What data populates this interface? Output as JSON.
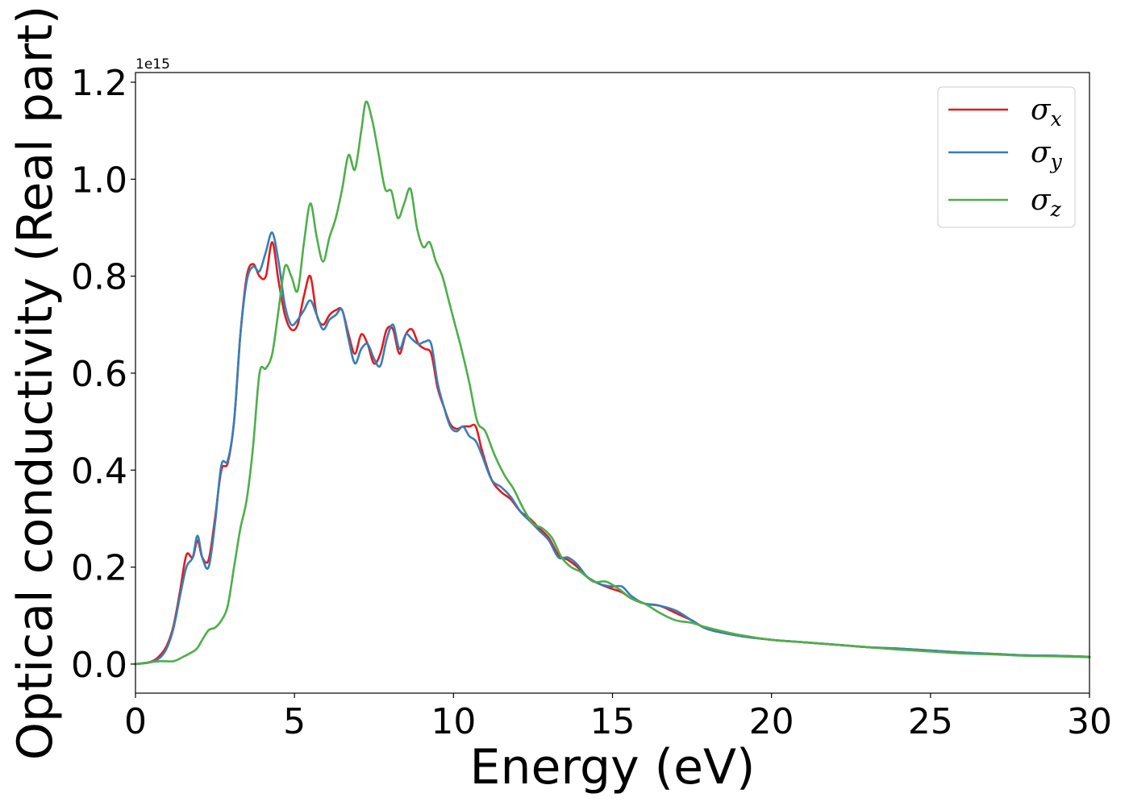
{
  "chart_data": {
    "type": "line",
    "xlabel": "Energy (eV)",
    "ylabel": "Optical conductivity (Real part)",
    "y_offset_label": "1e15",
    "xlim": [
      0,
      30
    ],
    "ylim": [
      -0.06,
      1.22
    ],
    "x_ticks": [
      0,
      5,
      10,
      15,
      20,
      25,
      30
    ],
    "x_tick_labels": [
      "0",
      "5",
      "10",
      "15",
      "20",
      "25",
      "30"
    ],
    "y_ticks": [
      0.0,
      0.2,
      0.4,
      0.6,
      0.8,
      1.0,
      1.2
    ],
    "y_tick_labels": [
      "0.0",
      "0.2",
      "0.4",
      "0.6",
      "0.8",
      "1.0",
      "1.2"
    ],
    "grid": false,
    "legend_position": "top-right",
    "series": [
      {
        "name": "σ_x",
        "legend_base": "σ",
        "legend_sub": "x",
        "color": "#e41a1c",
        "x": [
          0,
          0.5,
          0.8,
          1.0,
          1.2,
          1.4,
          1.6,
          1.8,
          1.95,
          2.1,
          2.3,
          2.5,
          2.7,
          2.9,
          3.1,
          3.3,
          3.5,
          3.7,
          3.9,
          4.1,
          4.3,
          4.5,
          4.7,
          4.9,
          5.1,
          5.3,
          5.5,
          5.7,
          5.9,
          6.1,
          6.3,
          6.5,
          6.7,
          6.9,
          7.1,
          7.3,
          7.5,
          7.7,
          7.9,
          8.1,
          8.3,
          8.5,
          8.7,
          8.9,
          9.1,
          9.3,
          9.5,
          9.7,
          9.9,
          10.1,
          10.3,
          10.5,
          10.7,
          10.9,
          11.2,
          11.5,
          11.8,
          12.1,
          12.4,
          12.7,
          13.0,
          13.3,
          13.6,
          13.9,
          14.2,
          14.6,
          15.0,
          15.3,
          15.6,
          16.0,
          16.5,
          17.0,
          17.5,
          18.0,
          19.0,
          20.0,
          21.0,
          22.0,
          23.0,
          24.0,
          25.0,
          26.0,
          27.0,
          28.0,
          29.0,
          30.0
        ],
        "y": [
          0,
          0.005,
          0.02,
          0.04,
          0.08,
          0.15,
          0.225,
          0.22,
          0.255,
          0.22,
          0.215,
          0.3,
          0.4,
          0.415,
          0.5,
          0.68,
          0.8,
          0.825,
          0.8,
          0.8,
          0.87,
          0.79,
          0.72,
          0.69,
          0.7,
          0.76,
          0.8,
          0.72,
          0.7,
          0.72,
          0.73,
          0.73,
          0.68,
          0.64,
          0.68,
          0.66,
          0.62,
          0.64,
          0.69,
          0.69,
          0.64,
          0.68,
          0.69,
          0.66,
          0.65,
          0.64,
          0.57,
          0.53,
          0.495,
          0.485,
          0.49,
          0.49,
          0.49,
          0.44,
          0.38,
          0.355,
          0.34,
          0.315,
          0.3,
          0.28,
          0.26,
          0.225,
          0.215,
          0.2,
          0.18,
          0.165,
          0.155,
          0.148,
          0.135,
          0.125,
          0.12,
          0.105,
          0.09,
          0.072,
          0.058,
          0.05,
          0.045,
          0.04,
          0.035,
          0.032,
          0.028,
          0.024,
          0.021,
          0.018,
          0.017,
          0.015
        ]
      },
      {
        "name": "σ_y",
        "legend_base": "σ",
        "legend_sub": "y",
        "color": "#377eb8",
        "x": [
          0,
          0.5,
          0.8,
          1.0,
          1.2,
          1.4,
          1.6,
          1.8,
          1.95,
          2.1,
          2.3,
          2.5,
          2.7,
          2.9,
          3.1,
          3.3,
          3.5,
          3.7,
          3.9,
          4.1,
          4.3,
          4.5,
          4.7,
          4.9,
          5.1,
          5.3,
          5.5,
          5.7,
          5.9,
          6.1,
          6.3,
          6.5,
          6.7,
          6.9,
          7.1,
          7.3,
          7.5,
          7.7,
          7.9,
          8.1,
          8.3,
          8.5,
          8.7,
          8.9,
          9.1,
          9.3,
          9.5,
          9.7,
          9.9,
          10.1,
          10.3,
          10.5,
          10.7,
          10.9,
          11.2,
          11.5,
          11.8,
          12.1,
          12.4,
          12.7,
          13.0,
          13.3,
          13.6,
          13.9,
          14.2,
          14.6,
          15.0,
          15.3,
          15.6,
          16.0,
          16.5,
          17.0,
          17.5,
          18.0,
          19.0,
          20.0,
          21.0,
          22.0,
          23.0,
          24.0,
          25.0,
          26.0,
          27.0,
          28.0,
          29.0,
          30.0
        ],
        "y": [
          0,
          0.004,
          0.015,
          0.035,
          0.075,
          0.14,
          0.2,
          0.22,
          0.265,
          0.22,
          0.2,
          0.29,
          0.41,
          0.42,
          0.5,
          0.68,
          0.79,
          0.82,
          0.81,
          0.85,
          0.89,
          0.83,
          0.74,
          0.7,
          0.71,
          0.73,
          0.75,
          0.72,
          0.69,
          0.71,
          0.72,
          0.73,
          0.67,
          0.62,
          0.65,
          0.66,
          0.63,
          0.615,
          0.67,
          0.7,
          0.65,
          0.68,
          0.67,
          0.66,
          0.665,
          0.66,
          0.58,
          0.53,
          0.49,
          0.48,
          0.49,
          0.47,
          0.46,
          0.43,
          0.38,
          0.365,
          0.345,
          0.315,
          0.295,
          0.275,
          0.255,
          0.22,
          0.22,
          0.205,
          0.18,
          0.165,
          0.16,
          0.16,
          0.14,
          0.125,
          0.12,
          0.11,
          0.09,
          0.072,
          0.058,
          0.05,
          0.045,
          0.04,
          0.035,
          0.032,
          0.028,
          0.024,
          0.021,
          0.018,
          0.017,
          0.015
        ]
      },
      {
        "name": "σ_z",
        "legend_base": "σ",
        "legend_sub": "z",
        "color": "#4daf4a",
        "x": [
          0,
          0.5,
          0.8,
          1.2,
          1.5,
          1.9,
          2.1,
          2.3,
          2.5,
          2.7,
          2.9,
          3.1,
          3.3,
          3.5,
          3.7,
          3.9,
          4.1,
          4.3,
          4.5,
          4.7,
          4.9,
          5.1,
          5.3,
          5.5,
          5.7,
          5.9,
          6.1,
          6.3,
          6.5,
          6.7,
          6.9,
          7.1,
          7.25,
          7.45,
          7.65,
          7.85,
          8.05,
          8.25,
          8.45,
          8.65,
          8.85,
          9.05,
          9.25,
          9.45,
          9.65,
          9.85,
          10.05,
          10.25,
          10.5,
          10.75,
          11.0,
          11.3,
          11.6,
          11.9,
          12.2,
          12.5,
          12.8,
          13.1,
          13.4,
          13.7,
          14.0,
          14.4,
          14.8,
          15.2,
          15.6,
          16.0,
          16.5,
          17.0,
          17.5,
          18.0,
          19.0,
          20.0,
          21.0,
          22.0,
          23.0,
          24.0,
          25.0,
          26.0,
          27.0,
          28.0,
          29.0,
          30.0
        ],
        "y": [
          0,
          0.004,
          0.006,
          0.006,
          0.015,
          0.03,
          0.05,
          0.07,
          0.075,
          0.09,
          0.12,
          0.2,
          0.28,
          0.34,
          0.45,
          0.6,
          0.61,
          0.64,
          0.73,
          0.82,
          0.8,
          0.77,
          0.87,
          0.95,
          0.88,
          0.83,
          0.88,
          0.92,
          0.98,
          1.05,
          1.02,
          1.1,
          1.16,
          1.12,
          1.05,
          0.98,
          0.975,
          0.92,
          0.95,
          0.98,
          0.9,
          0.86,
          0.87,
          0.83,
          0.8,
          0.75,
          0.7,
          0.65,
          0.58,
          0.5,
          0.48,
          0.43,
          0.39,
          0.36,
          0.32,
          0.29,
          0.28,
          0.26,
          0.22,
          0.2,
          0.19,
          0.17,
          0.17,
          0.155,
          0.135,
          0.125,
          0.105,
          0.09,
          0.085,
          0.075,
          0.06,
          0.05,
          0.045,
          0.04,
          0.035,
          0.03,
          0.026,
          0.022,
          0.02,
          0.017,
          0.016,
          0.014
        ]
      }
    ]
  }
}
